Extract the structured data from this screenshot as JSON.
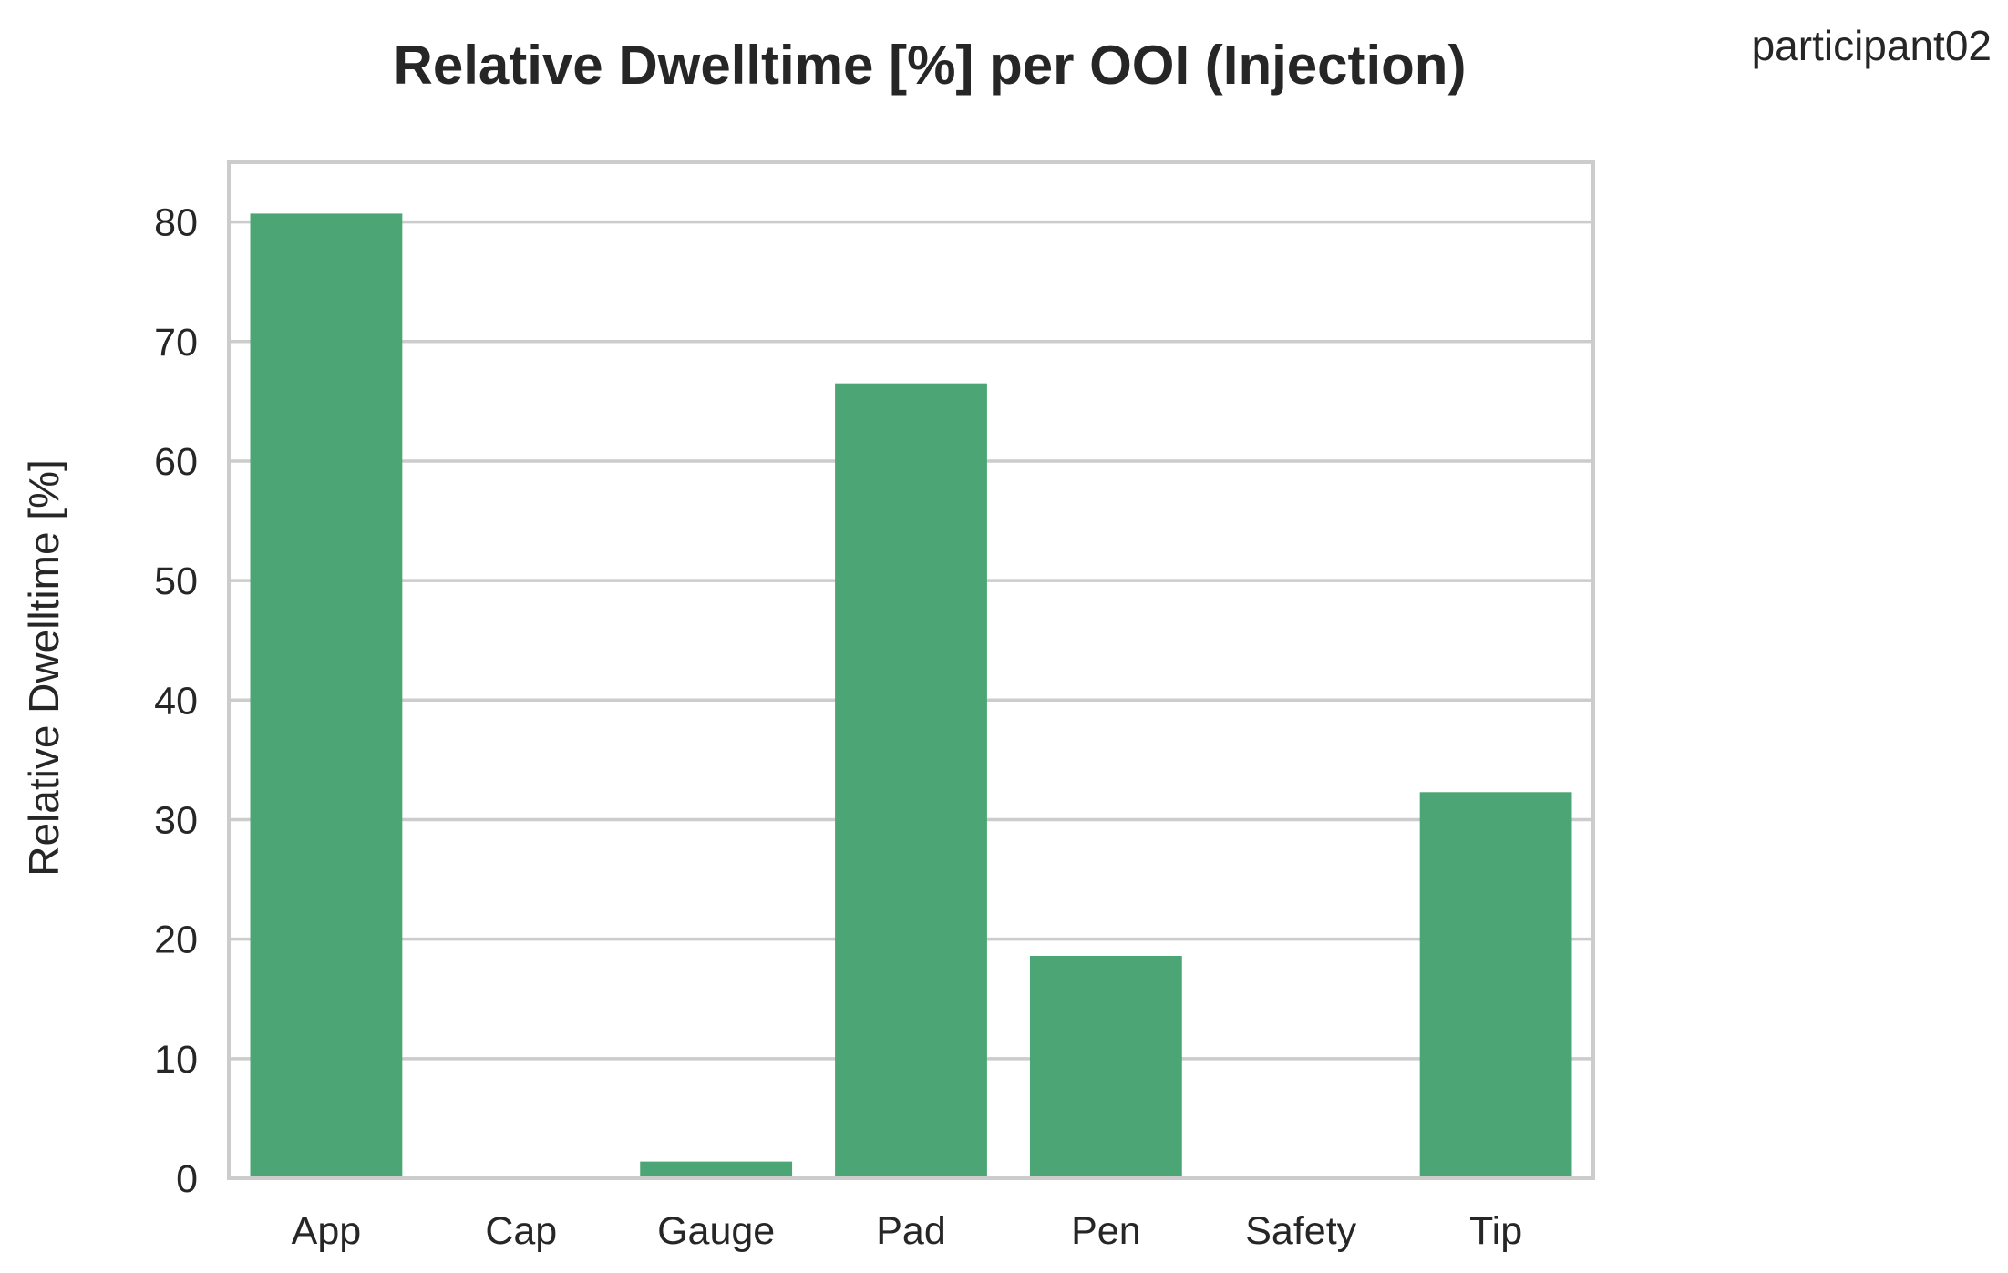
{
  "chart_data": {
    "type": "bar",
    "title": "Relative Dwelltime [%] per OOI (Injection)",
    "annotation": "participant02",
    "xlabel": "",
    "ylabel": "Relative Dwelltime [%]",
    "categories": [
      "App",
      "Cap",
      "Gauge",
      "Pad",
      "Pen",
      "Safety",
      "Tip"
    ],
    "values": [
      80.7,
      0,
      1.4,
      66.5,
      18.6,
      0,
      32.3
    ],
    "ylim": [
      0,
      85
    ],
    "yticks": [
      0,
      10,
      20,
      30,
      40,
      50,
      60,
      70,
      80
    ],
    "grid": true,
    "bar_color": "#4ba574",
    "grid_color": "#cccccc"
  }
}
